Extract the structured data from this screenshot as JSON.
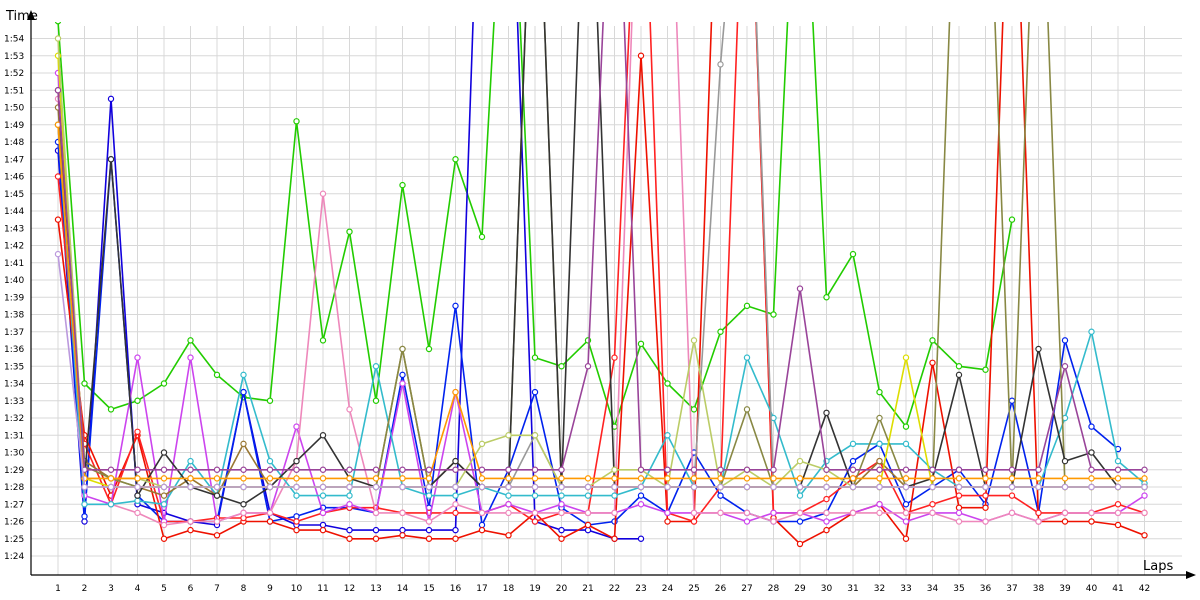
{
  "chart_data": {
    "type": "line",
    "ylabel": "Time",
    "xlabel": "Laps",
    "x": [
      1,
      2,
      3,
      4,
      5,
      6,
      7,
      8,
      9,
      10,
      11,
      12,
      13,
      14,
      15,
      16,
      17,
      18,
      19,
      20,
      21,
      22,
      23,
      24,
      25,
      26,
      27,
      28,
      29,
      30,
      31,
      32,
      33,
      34,
      35,
      36,
      37,
      38,
      39,
      40,
      41,
      42
    ],
    "y_ticks": [
      "1:24",
      "1:25",
      "1:26",
      "1:27",
      "1:28",
      "1:29",
      "1:30",
      "1:31",
      "1:32",
      "1:33",
      "1:34",
      "1:35",
      "1:36",
      "1:37",
      "1:38",
      "1:39",
      "1:40",
      "1:41",
      "1:42",
      "1:43",
      "1:44",
      "1:45",
      "1:46",
      "1:47",
      "1:48",
      "1:49",
      "1:50",
      "1:51",
      "1:52",
      "1:53",
      "1:54"
    ],
    "ylim": [
      83.5,
      115.5
    ],
    "y_unit": "seconds",
    "grid": true,
    "series": [
      {
        "color": "#22cc00",
        "values": [
          115,
          94,
          92.5,
          93,
          94,
          96.5,
          94.5,
          93.2,
          93,
          109.2,
          96.5,
          102.8,
          93,
          105.5,
          96,
          107,
          102.5,
          130,
          95.5,
          95,
          96.5,
          91.5,
          96.3,
          94,
          92.5,
          97,
          98.5,
          98,
          130,
          99,
          101.5,
          93.5,
          91.5,
          96.5,
          95,
          94.8,
          103.5,
          null,
          null,
          null,
          null,
          null
        ]
      },
      {
        "color": "#1100dd",
        "values": [
          107.5,
          86,
          110.5,
          87,
          86.5,
          86,
          85.8,
          93.5,
          86.5,
          85.8,
          85.8,
          85.5,
          85.5,
          85.5,
          85.5,
          85.5,
          130,
          130,
          86,
          85.5,
          85.5,
          85,
          85,
          null,
          null,
          null,
          null,
          null,
          null,
          null,
          null,
          null,
          null,
          null,
          null,
          null,
          null,
          null,
          null,
          null,
          null,
          null
        ]
      },
      {
        "color": "#0022ee",
        "values": [
          108,
          86.3,
          107,
          87.5,
          86,
          86,
          86,
          93.5,
          86,
          86.3,
          86.8,
          86.8,
          86.5,
          94.5,
          86.8,
          98.5,
          85.8,
          89,
          93.5,
          86.8,
          85.8,
          86,
          87.5,
          86.5,
          90,
          87.5,
          86.5,
          86,
          86,
          86.5,
          89.5,
          90.5,
          87,
          88,
          89,
          87,
          93,
          86.5,
          96.5,
          91.5,
          90.2,
          null
        ]
      },
      {
        "color": "#ee1100",
        "values": [
          103.5,
          91,
          87.5,
          91,
          85,
          85.5,
          85.2,
          86,
          86,
          85.5,
          85.5,
          85,
          85,
          85.2,
          85,
          85,
          85.5,
          85.2,
          86.5,
          85,
          85.8,
          85,
          113,
          86,
          86,
          130,
          130,
          86.2,
          84.7,
          85.5,
          86.5,
          87,
          85,
          95.2,
          86.8,
          86.8,
          130,
          86,
          86,
          86,
          85.8,
          85.2
        ]
      },
      {
        "color": "#ff2222",
        "values": [
          106,
          90.5,
          87,
          91.2,
          86,
          86,
          86.2,
          86.2,
          86.5,
          86,
          86.5,
          86.8,
          86.8,
          86.5,
          86.5,
          86.5,
          86.5,
          87,
          86,
          86.5,
          86.5,
          95.5,
          130,
          86.5,
          86,
          88,
          130,
          86.5,
          86.5,
          87.3,
          88.5,
          89.5,
          86.5,
          87,
          87.5,
          87.5,
          87.5,
          86.5,
          86.5,
          86.5,
          87,
          86.5
        ]
      },
      {
        "color": "#cc44ee",
        "values": [
          112,
          87.5,
          87,
          95.5,
          86,
          95.5,
          86,
          86.5,
          86.5,
          91.5,
          86.5,
          87,
          86.5,
          94,
          86,
          93.5,
          86.5,
          87,
          86.5,
          87,
          86.5,
          86.5,
          87,
          86.5,
          86.5,
          86.5,
          86,
          86.5,
          86.5,
          86,
          86.5,
          87,
          86,
          86.5,
          86.5,
          86,
          86.5,
          86,
          86.5,
          86.5,
          86.5,
          87.5
        ]
      },
      {
        "color": "#ee88bb",
        "values": [
          110.5,
          87,
          87,
          86.5,
          85.8,
          86,
          86,
          86.5,
          86.5,
          89.5,
          105,
          92.5,
          86.5,
          86.5,
          86,
          87,
          86.5,
          86.5,
          86.5,
          86.5,
          86.5,
          86.5,
          130,
          130,
          86.5,
          86.5,
          86.5,
          86,
          86.5,
          86.5,
          86.5,
          86.5,
          86.5,
          86.5,
          86,
          86,
          86.5,
          86,
          86.5,
          86.5,
          86.5,
          86.5
        ]
      },
      {
        "color": "#33bbcc",
        "values": [
          109,
          87,
          87,
          87.2,
          87,
          89.5,
          87.5,
          94.5,
          89.5,
          87.5,
          87.5,
          87.5,
          95,
          88,
          87.5,
          87.5,
          88,
          87.5,
          87.5,
          87.5,
          87.5,
          87.5,
          88,
          91,
          88,
          88,
          95.5,
          92,
          87.5,
          89.5,
          90.5,
          90.5,
          90.5,
          89,
          88,
          88,
          88,
          88,
          92,
          97,
          89.5,
          88.2
        ]
      },
      {
        "color": "#997733",
        "values": [
          110,
          89.5,
          88.5,
          88,
          87.5,
          88.5,
          87.5,
          90.5,
          88,
          88,
          88,
          88,
          88,
          96,
          88,
          89.5,
          88,
          88,
          88,
          88,
          88,
          88,
          88,
          88,
          88,
          88,
          88,
          88,
          88,
          88,
          88,
          89.5,
          88,
          88,
          88,
          88,
          88,
          88,
          88,
          88,
          88,
          88
        ]
      },
      {
        "color": "#888844",
        "values": [
          109,
          89.2,
          88.5,
          88,
          88,
          88,
          88,
          88,
          88,
          88,
          88,
          88,
          88,
          96,
          88,
          88,
          88,
          88,
          130,
          88,
          88,
          88,
          88,
          88,
          88,
          88,
          92.5,
          88,
          88,
          88,
          88,
          92,
          88,
          88,
          130,
          130,
          88,
          130,
          88,
          88,
          88,
          88
        ]
      },
      {
        "color": "#333333",
        "values": [
          111,
          88.5,
          107,
          87.5,
          90,
          88,
          87.5,
          87,
          88,
          89.5,
          91,
          88.5,
          88,
          88,
          88,
          89.5,
          88,
          88,
          130,
          88,
          130,
          88,
          88,
          88,
          88,
          88,
          88,
          88,
          88,
          92.3,
          88,
          88,
          88,
          88.5,
          94.5,
          88,
          88,
          96,
          89.5,
          90,
          88,
          88
        ]
      },
      {
        "color": "#999999",
        "values": [
          109,
          88,
          88,
          88,
          88,
          88,
          88,
          88,
          88,
          88,
          88,
          88,
          88,
          88,
          88,
          88,
          88,
          88,
          91,
          88,
          88,
          88,
          88,
          88,
          88,
          112.5,
          130,
          88,
          88,
          88,
          88,
          88,
          88,
          88,
          88,
          88,
          88,
          88,
          88,
          88,
          88,
          88
        ]
      },
      {
        "color": "#dddd00",
        "values": [
          113,
          88.5,
          88,
          88,
          88,
          88,
          88,
          88,
          88,
          88,
          88,
          88,
          88,
          88,
          88,
          88,
          88,
          88,
          88,
          88,
          88,
          88,
          88,
          88,
          88,
          88,
          88,
          88,
          88,
          88,
          88,
          88,
          95.5,
          88,
          88,
          88,
          88,
          88,
          88,
          88,
          88,
          88
        ]
      },
      {
        "color": "#bbcc66",
        "values": [
          114,
          88.5,
          88.5,
          88.5,
          88,
          88,
          88,
          88,
          88,
          88,
          88,
          88,
          88,
          88,
          88,
          88,
          90.5,
          91,
          91,
          88,
          88,
          89,
          89,
          88,
          96.5,
          88,
          89,
          88,
          89.5,
          89,
          88,
          88,
          88,
          88,
          88,
          88,
          88,
          88,
          88,
          88,
          88,
          88
        ]
      },
      {
        "color": "#ff9900",
        "values": [
          109,
          88.5,
          88.5,
          88.5,
          88.5,
          88.5,
          88.5,
          88.5,
          88.5,
          88.5,
          88.5,
          88.5,
          88.5,
          88.5,
          88.5,
          93.5,
          88.5,
          88.5,
          88.5,
          88.5,
          88.5,
          88.5,
          88.5,
          88.5,
          88.5,
          88.5,
          88.5,
          88.5,
          88.5,
          88.5,
          88.5,
          88.5,
          88.5,
          88.5,
          88.5,
          88.5,
          88.5,
          88.5,
          88.5,
          88.5,
          88.5,
          88.5
        ]
      },
      {
        "color": "#994499",
        "values": [
          111,
          89,
          89,
          89,
          89,
          89,
          89,
          89,
          89,
          89,
          89,
          89,
          89,
          89,
          89,
          89,
          89,
          89,
          89,
          89,
          95,
          130,
          89,
          89,
          89,
          89,
          89,
          89,
          99.5,
          89,
          89,
          89,
          89,
          89,
          89,
          89,
          89,
          89,
          95,
          89,
          89,
          89
        ]
      },
      {
        "color": "#bb99dd",
        "values": [
          101.5,
          88,
          88,
          88,
          88,
          88,
          88,
          88,
          88,
          88,
          88,
          88,
          88,
          88,
          88,
          88,
          88,
          88,
          88,
          88,
          88,
          88,
          88,
          88,
          88,
          88,
          88,
          88,
          88,
          88,
          88,
          88,
          88,
          88,
          88,
          88,
          88,
          88,
          88,
          88,
          88,
          88
        ]
      }
    ]
  }
}
